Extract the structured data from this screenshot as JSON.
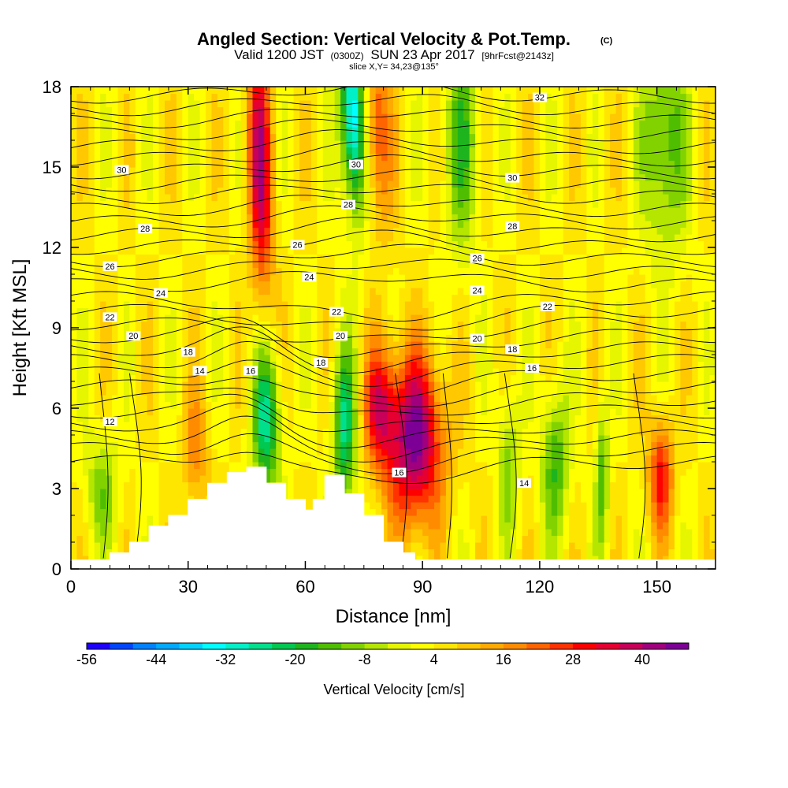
{
  "title": {
    "main": "Angled Section: Vertical Velocity & Pot.Temp.",
    "main_suffix": "(C)",
    "sub_prefix": "Valid 1200 JST",
    "sub_small1": "(0300Z)",
    "sub_mid": "SUN 23 Apr 2017",
    "sub_small2": "[9hrFcst@2143z]",
    "slice": "slice X,Y= 34,23@135°"
  },
  "chart_data": {
    "type": "heatmap",
    "xlabel": "Distance [nm]",
    "ylabel": "Height [Kft MSL]",
    "xlim": [
      0,
      165
    ],
    "ylim": [
      0,
      18
    ],
    "x_ticks": [
      0,
      30,
      60,
      90,
      120,
      150
    ],
    "y_ticks": [
      0,
      3,
      6,
      9,
      12,
      15,
      18
    ],
    "colorbar": {
      "title": "Vertical Velocity [cm/s]",
      "tick_labels": [
        "-56",
        "-44",
        "-32",
        "-20",
        "-8",
        "4",
        "16",
        "28",
        "40"
      ],
      "tick_values": [
        -56,
        -44,
        -32,
        -20,
        -8,
        4,
        16,
        28,
        40
      ],
      "bin_edges": [
        -56,
        -52,
        -48,
        -44,
        -40,
        -36,
        -32,
        -28,
        -24,
        -20,
        -16,
        -12,
        -8,
        -4,
        0,
        4,
        8,
        12,
        16,
        20,
        24,
        28,
        32,
        36,
        40,
        44,
        48
      ],
      "colors": [
        "#1e00ff",
        "#0046ff",
        "#0082ff",
        "#00aaff",
        "#00d2ff",
        "#00ffff",
        "#00f0c8",
        "#00e08c",
        "#00c850",
        "#1eb41e",
        "#50be00",
        "#82d200",
        "#b4e600",
        "#e6f500",
        "#ffff00",
        "#ffe600",
        "#ffc800",
        "#ffaa00",
        "#ff8c00",
        "#ff6400",
        "#ff3200",
        "#ff0000",
        "#e60032",
        "#c8005a",
        "#a0007d",
        "#7d0096"
      ]
    },
    "terrain": [
      [
        10,
        0.6
      ],
      [
        15,
        0.6
      ],
      [
        15,
        1.0
      ],
      [
        20,
        1.0
      ],
      [
        20,
        1.6
      ],
      [
        25,
        1.6
      ],
      [
        25,
        2.0
      ],
      [
        30,
        2.0
      ],
      [
        30,
        2.6
      ],
      [
        35,
        2.6
      ],
      [
        35,
        3.2
      ],
      [
        40,
        3.2
      ],
      [
        40,
        3.6
      ],
      [
        45,
        3.6
      ],
      [
        45,
        3.8
      ],
      [
        50,
        3.8
      ],
      [
        50,
        3.2
      ],
      [
        55,
        3.2
      ],
      [
        55,
        2.6
      ],
      [
        60,
        2.6
      ],
      [
        60,
        2.2
      ],
      [
        62,
        2.2
      ],
      [
        62,
        2.6
      ],
      [
        65,
        2.6
      ],
      [
        65,
        3.5
      ],
      [
        70,
        3.5
      ],
      [
        70,
        2.8
      ],
      [
        75,
        2.8
      ],
      [
        75,
        2.0
      ],
      [
        80,
        2.0
      ],
      [
        80,
        1.0
      ],
      [
        85,
        1.0
      ],
      [
        85,
        0.6
      ],
      [
        88,
        0.6
      ]
    ],
    "contour_labels": [
      {
        "text": "32",
        "x": 120,
        "y": 17.6
      },
      {
        "text": "30",
        "x": 13,
        "y": 14.9
      },
      {
        "text": "30",
        "x": 73,
        "y": 15.1
      },
      {
        "text": "30",
        "x": 113,
        "y": 14.6
      },
      {
        "text": "28",
        "x": 19,
        "y": 12.7
      },
      {
        "text": "28",
        "x": 71,
        "y": 13.6
      },
      {
        "text": "28",
        "x": 113,
        "y": 12.8
      },
      {
        "text": "26",
        "x": 10,
        "y": 11.3
      },
      {
        "text": "26",
        "x": 58,
        "y": 12.1
      },
      {
        "text": "26",
        "x": 104,
        "y": 11.6
      },
      {
        "text": "24",
        "x": 23,
        "y": 10.3
      },
      {
        "text": "24",
        "x": 61,
        "y": 10.9
      },
      {
        "text": "24",
        "x": 104,
        "y": 10.4
      },
      {
        "text": "22",
        "x": 10,
        "y": 9.4
      },
      {
        "text": "22",
        "x": 68,
        "y": 9.6
      },
      {
        "text": "22",
        "x": 122,
        "y": 9.8
      },
      {
        "text": "20",
        "x": 16,
        "y": 8.7
      },
      {
        "text": "20",
        "x": 69,
        "y": 8.7
      },
      {
        "text": "20",
        "x": 104,
        "y": 8.6
      },
      {
        "text": "18",
        "x": 30,
        "y": 8.1
      },
      {
        "text": "18",
        "x": 64,
        "y": 7.7
      },
      {
        "text": "18",
        "x": 113,
        "y": 8.2
      },
      {
        "text": "16",
        "x": 46,
        "y": 7.4
      },
      {
        "text": "16",
        "x": 84,
        "y": 3.6
      },
      {
        "text": "16",
        "x": 118,
        "y": 7.5
      },
      {
        "text": "14",
        "x": 33,
        "y": 7.4
      },
      {
        "text": "14",
        "x": 116,
        "y": 3.2
      },
      {
        "text": "12",
        "x": 10,
        "y": 5.5
      }
    ]
  }
}
